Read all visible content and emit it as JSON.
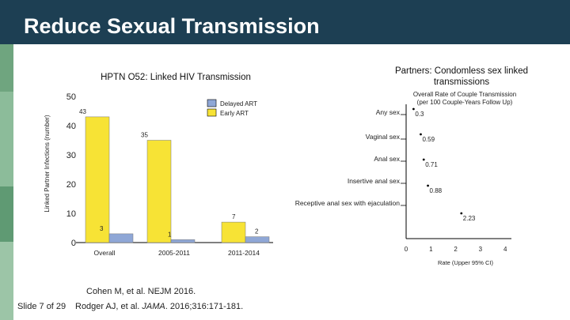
{
  "slide": {
    "title": "Reduce Sexual Transmission",
    "footer_slide": "Slide 7 of 29",
    "citation_1": "Cohen M, et al. NEJM 2016.",
    "citation_2_prefix": "Rodger AJ, et al. ",
    "citation_2_journal": "JAMA",
    "citation_2_suffix": ". 2016;316:171-181."
  },
  "colors": {
    "title_bar": "#1d3f53",
    "delayed_art": "#8fa7d6",
    "early_art": "#f7e335",
    "stripe": "#7fb18f"
  },
  "chart_data": [
    {
      "type": "bar",
      "title": "HPTN O52: Linked HIV Transmission",
      "xlabel": "",
      "ylabel": "Linked Partner Infections (number)",
      "ylim": [
        0,
        50
      ],
      "yticks": [
        0,
        10,
        20,
        30,
        40,
        50
      ],
      "categories": [
        "Overall",
        "2005-2011",
        "2011-2014"
      ],
      "legend_position": "top-right",
      "series": [
        {
          "name": "Early ART",
          "color": "#f7e335",
          "values": [
            43,
            35,
            7
          ]
        },
        {
          "name": "Delayed ART",
          "color": "#8fa7d6",
          "values": [
            3,
            1,
            2
          ]
        }
      ],
      "legend": [
        "Delayed ART",
        "Early ART"
      ]
    },
    {
      "type": "scatter",
      "title": "Partners: Condomless sex linked transmissions",
      "subtitle_1": "Overall Rate of Couple Transmission",
      "subtitle_2": "(per 100 Couple-Years Follow Up)",
      "xlabel": "Rate (Upper 95% CI)",
      "xlim": [
        0,
        4
      ],
      "xticks": [
        0,
        1,
        2,
        3,
        4
      ],
      "categories": [
        "Any sex",
        "Vaginal sex",
        "Anal sex",
        "Insertive anal sex",
        "Receptive anal sex with ejaculation"
      ],
      "values": [
        0.3,
        0.59,
        0.71,
        0.88,
        2.23
      ],
      "value_labels": [
        "0.3",
        "0.59",
        "0.71",
        "0.88",
        "2.23"
      ]
    }
  ]
}
